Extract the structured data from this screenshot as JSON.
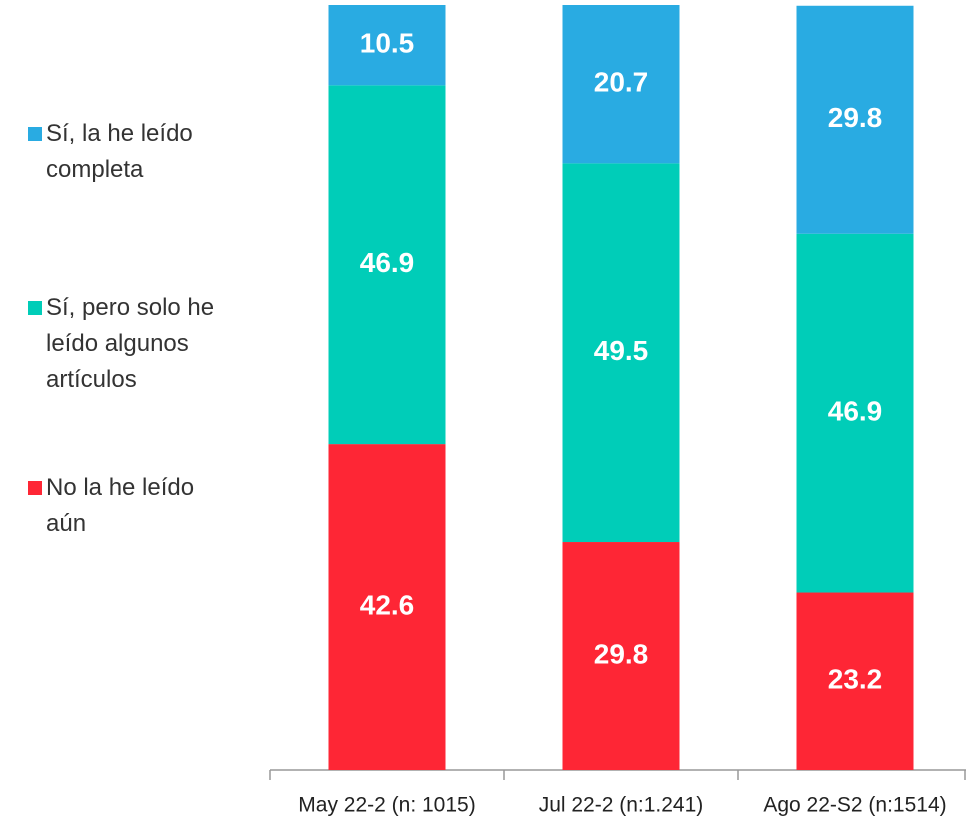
{
  "chart_data": {
    "type": "stacked_bar",
    "categories": [
      "May 22-2 (n: 1015)",
      "Jul 22-2  (n:1.241)",
      "Ago 22-S2 (n:1514)"
    ],
    "series": [
      {
        "name": "No la he leído aún",
        "color": "#fe2635",
        "values": [
          42.6,
          29.8,
          23.2
        ]
      },
      {
        "name": "Sí, pero solo he leído algunos artículos",
        "color": "#00cdb8",
        "values": [
          46.9,
          49.5,
          46.9
        ]
      },
      {
        "name": "Sí, la he leído completa",
        "color": "#29abe2",
        "values": [
          10.5,
          20.7,
          29.8
        ]
      }
    ],
    "ylim": [
      0,
      100
    ],
    "legend": "left"
  }
}
